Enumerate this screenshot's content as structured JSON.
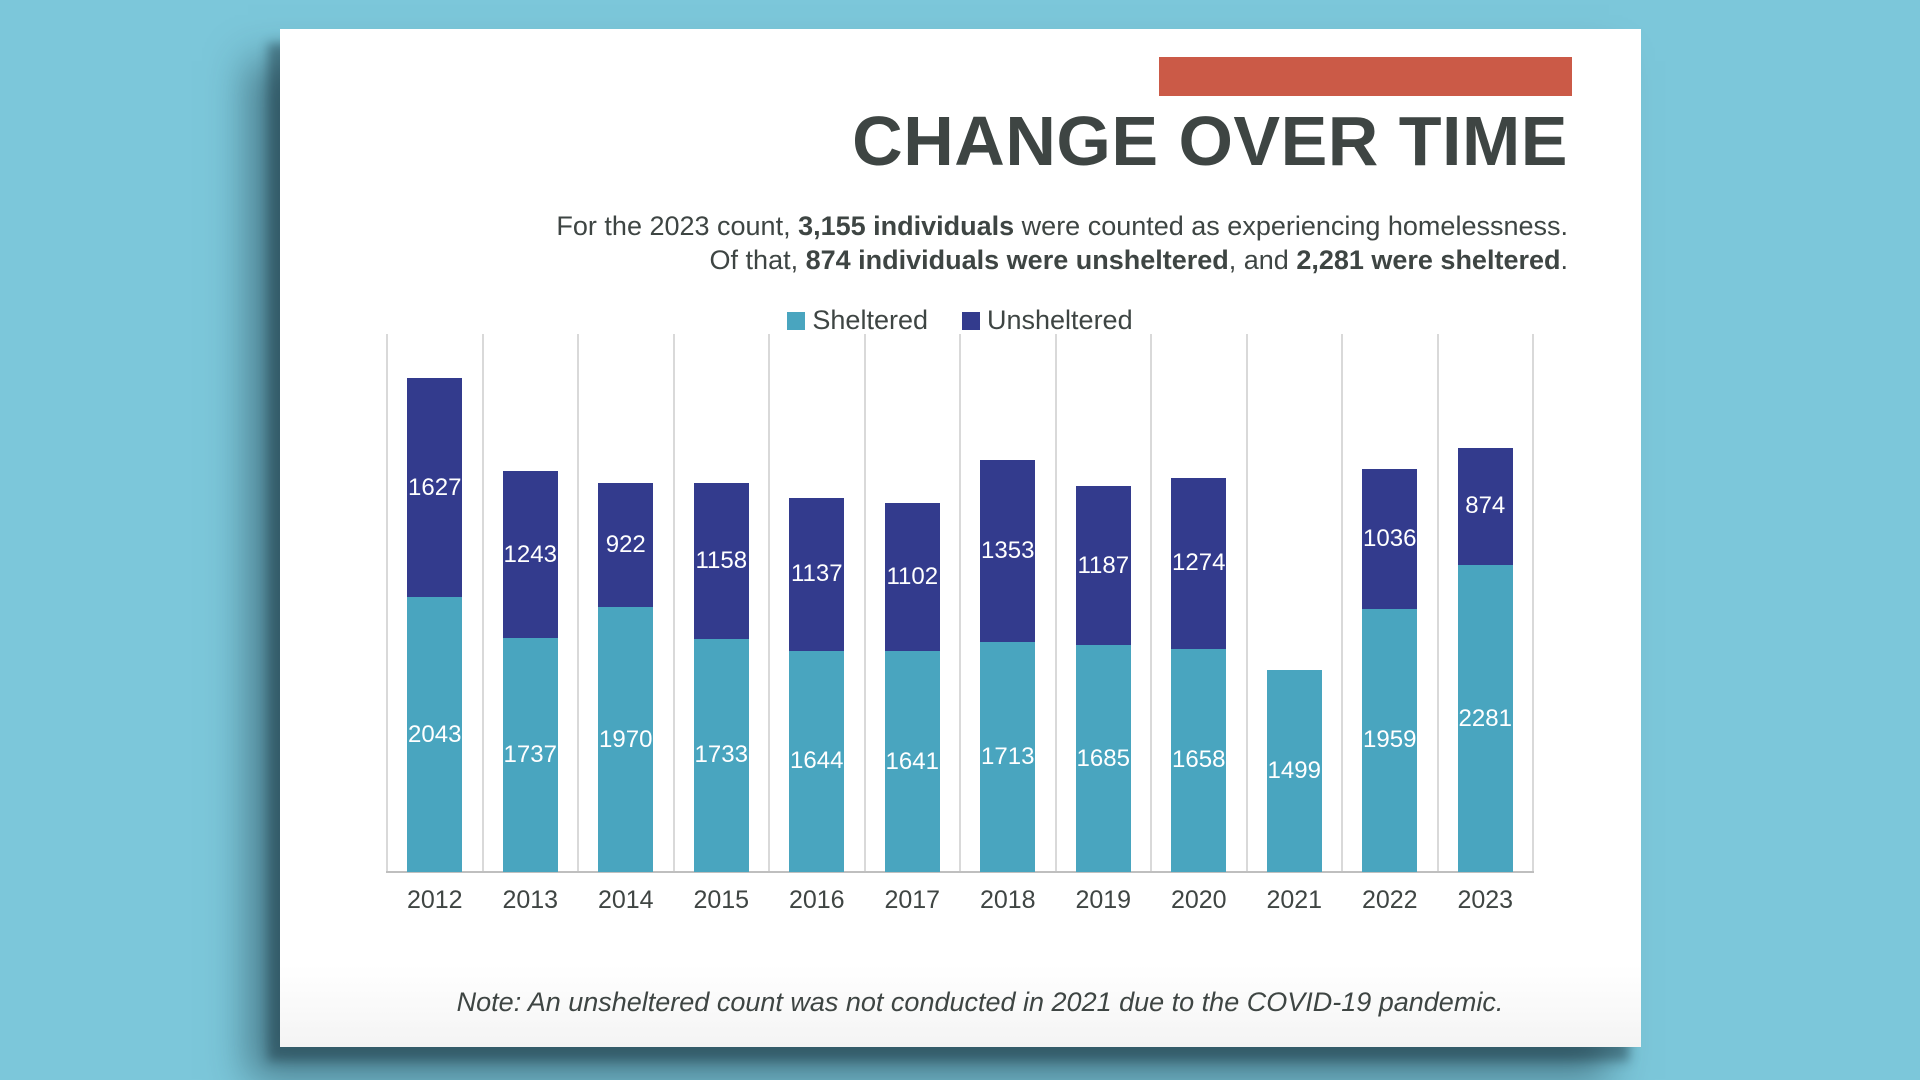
{
  "colors": {
    "page_background": "#7cc7da",
    "card_background": "#ffffff",
    "accent": "#cb5a47",
    "text": "#3e4543",
    "gridline": "#d9d9d9",
    "axis_line": "#bfbfbf",
    "bar_label_text": "#ffffff",
    "sheltered": "#49a5bf",
    "unsheltered": "#333b8d"
  },
  "header": {
    "title": "CHANGE OVER TIME"
  },
  "subtitle": {
    "lines": [
      [
        {
          "text": "For the 2023 count, ",
          "bold": false
        },
        {
          "text": "3,155 individuals",
          "bold": true
        },
        {
          "text": " were counted as experiencing homelessness.",
          "bold": false
        }
      ],
      [
        {
          "text": "Of that, ",
          "bold": false
        },
        {
          "text": "874 individuals were unsheltered",
          "bold": true
        },
        {
          "text": ", and ",
          "bold": false
        },
        {
          "text": "2,281 were sheltered",
          "bold": true
        },
        {
          "text": ".",
          "bold": false
        }
      ]
    ]
  },
  "legend": [
    {
      "label": "Sheltered",
      "color": "#49a5bf"
    },
    {
      "label": "Unsheltered",
      "color": "#333b8d"
    }
  ],
  "chart_data": {
    "type": "bar",
    "stacked": true,
    "title": "Change Over Time - homelessness counts by year",
    "xlabel": "",
    "ylabel": "",
    "ylim": [
      0,
      4000
    ],
    "grid": "vertical category separators only",
    "legend_position": "top-center",
    "data_labels": "white values centered inside each segment",
    "categories": [
      "2012",
      "2013",
      "2014",
      "2015",
      "2016",
      "2017",
      "2018",
      "2019",
      "2020",
      "2021",
      "2022",
      "2023"
    ],
    "series": [
      {
        "name": "Sheltered",
        "color": "#49a5bf",
        "values": [
          2043,
          1737,
          1970,
          1733,
          1644,
          1641,
          1713,
          1685,
          1658,
          1499,
          1959,
          2281
        ]
      },
      {
        "name": "Unsheltered",
        "color": "#333b8d",
        "values": [
          1627,
          1243,
          922,
          1158,
          1137,
          1102,
          1353,
          1187,
          1274,
          null,
          1036,
          874
        ]
      }
    ]
  },
  "note": "Note: An unsheltered count was not conducted in 2021 due to the COVID-19 pandemic."
}
